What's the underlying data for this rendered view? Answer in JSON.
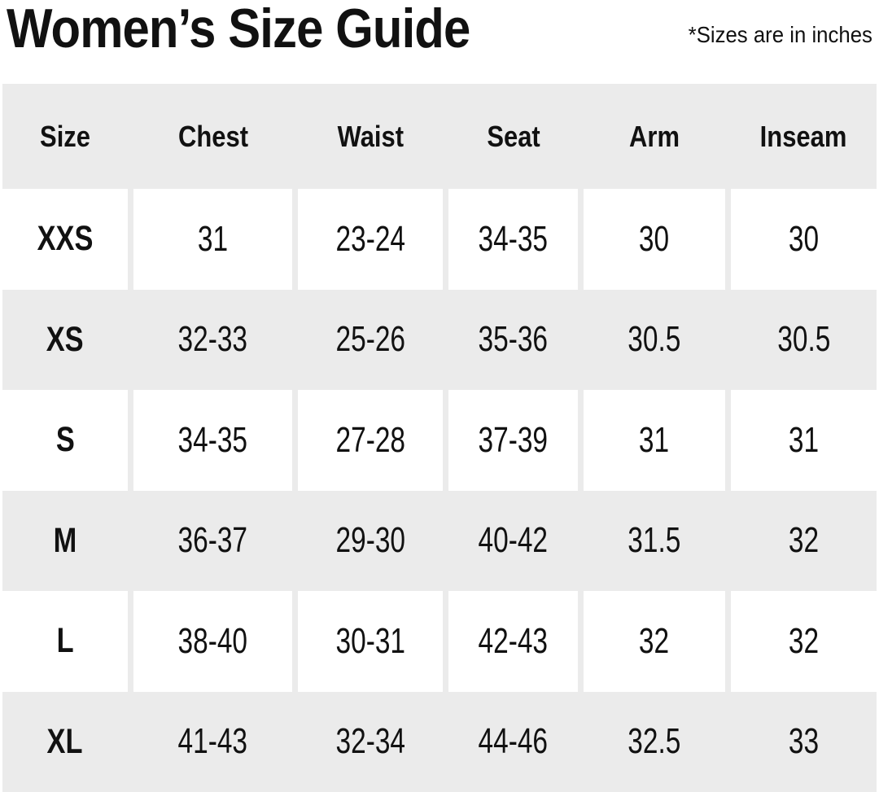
{
  "page": {
    "title": "Women’s Size Guide",
    "note": "*Sizes are in inches"
  },
  "table": {
    "columns": [
      "Size",
      "Chest",
      "Waist",
      "Seat",
      "Arm",
      "Inseam"
    ],
    "rows": [
      {
        "label": "XXS",
        "values": [
          "31",
          "23-24",
          "34-35",
          "30",
          "30"
        ]
      },
      {
        "label": "XS",
        "values": [
          "32-33",
          "25-26",
          "35-36",
          "30.5",
          "30.5"
        ]
      },
      {
        "label": "S",
        "values": [
          "34-35",
          "27-28",
          "37-39",
          "31",
          "31"
        ]
      },
      {
        "label": "M",
        "values": [
          "36-37",
          "29-30",
          "40-42",
          "31.5",
          "32"
        ]
      },
      {
        "label": "L",
        "values": [
          "38-40",
          "30-31",
          "42-43",
          "32",
          "32"
        ]
      },
      {
        "label": "XL",
        "values": [
          "41-43",
          "32-34",
          "44-46",
          "32.5",
          "33"
        ]
      }
    ]
  },
  "colors": {
    "row_shade": "#ebebeb",
    "text": "#111111",
    "page_bg": "#ffffff"
  }
}
